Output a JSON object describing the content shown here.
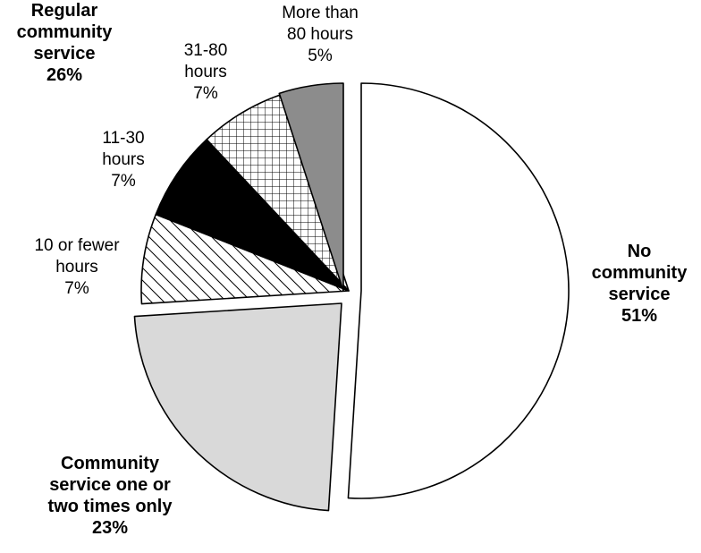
{
  "chart_data": {
    "type": "pie",
    "title": "",
    "slices": [
      {
        "key": "no_service",
        "label_lines": [
          "No",
          "community",
          "service"
        ],
        "value_label": "51%",
        "value": 51,
        "fill": "#ffffff",
        "pattern": "none",
        "bold": true
      },
      {
        "key": "one_two",
        "label_lines": [
          "Community",
          "service one or",
          "two times only"
        ],
        "value_label": "23%",
        "value": 23,
        "fill": "#d9d9d9",
        "pattern": "none",
        "bold": true
      },
      {
        "key": "le10",
        "label_lines": [
          "10 or fewer",
          "hours"
        ],
        "value_label": "7%",
        "value": 7,
        "fill": "#ffffff",
        "pattern": "diagonal",
        "bold": false
      },
      {
        "key": "h11_30",
        "label_lines": [
          "11-30",
          "hours"
        ],
        "value_label": "7%",
        "value": 7,
        "fill": "#000000",
        "pattern": "none",
        "bold": false
      },
      {
        "key": "h31_80",
        "label_lines": [
          "31-80",
          "hours"
        ],
        "value_label": "7%",
        "value": 7,
        "fill": "#ffffff",
        "pattern": "crosshatch",
        "bold": false
      },
      {
        "key": "gt80",
        "label_lines": [
          "More than",
          "80 hours"
        ],
        "value_label": "5%",
        "value": 5,
        "fill": "#8c8c8c",
        "pattern": "none",
        "bold": false
      }
    ],
    "group_label": {
      "label_lines": [
        "Regular",
        "community",
        "service"
      ],
      "value_label": "26%",
      "value": 26
    },
    "legend": "none"
  }
}
